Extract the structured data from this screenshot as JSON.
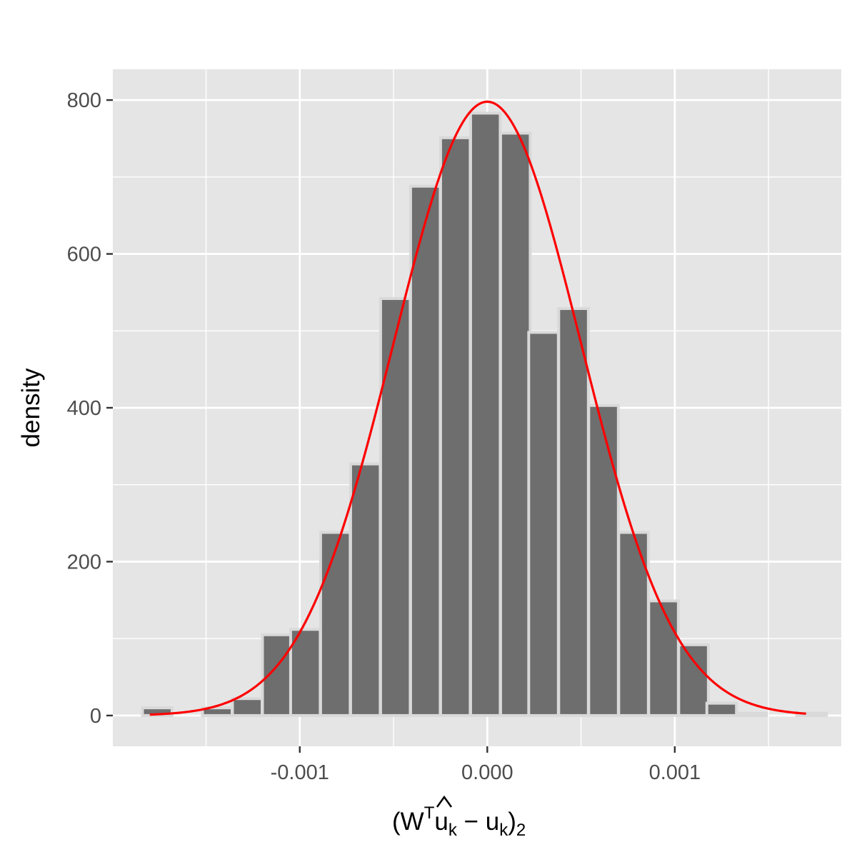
{
  "chart_data": {
    "type": "bar",
    "title": "",
    "ylabel": "density",
    "xlabel_parts": {
      "open": "(W",
      "sup": "T",
      "hat_base": "u",
      "sub_k": "k",
      "minus": " − u",
      "sub_k2": "k",
      "close": ")",
      "sub_2": "2"
    },
    "xlim": [
      -0.001997,
      0.001888
    ],
    "ylim": [
      -40,
      840
    ],
    "x_major_ticks": [
      -0.001,
      0.0,
      0.001
    ],
    "x_tick_labels": [
      "-0.001",
      "0.000",
      "0.001"
    ],
    "x_minor_ticks": [
      -0.0015,
      -0.0005,
      0.0005,
      0.0015
    ],
    "y_major_ticks": [
      0,
      200,
      400,
      600,
      800
    ],
    "y_tick_labels": [
      "0",
      "200",
      "400",
      "600",
      "800"
    ],
    "y_minor_ticks": [
      100,
      300,
      500,
      700
    ],
    "grid": true,
    "bin_width": 0.000158,
    "bin_centers": [
      -0.00176,
      -0.0016,
      -0.00144,
      -0.00128,
      -0.00112,
      -0.00097,
      -0.00081,
      -0.00065,
      -0.00049,
      -0.00033,
      -0.00017,
      -1e-05,
      0.00015,
      0.0003,
      0.00046,
      0.00062,
      0.00078,
      0.00094,
      0.0011,
      0.00125,
      0.00141,
      0.00157,
      0.00173
    ],
    "values": [
      10,
      0,
      10,
      22,
      105,
      112,
      238,
      327,
      542,
      688,
      751,
      783,
      757,
      498,
      529,
      403,
      238,
      149,
      92,
      16,
      3,
      0,
      3
    ],
    "normal_curve": {
      "mean": 0.0,
      "sd": 0.0005,
      "x_start": -0.0018,
      "x_end": 0.0017
    },
    "colors": {
      "panel_bg": "#e5e5e5",
      "grid_major": "#ffffff",
      "bar_fill": "#6e6e6e",
      "bar_outline": "#d9d9d9",
      "curve": "#ff0000",
      "tick_text": "#4d4d4d",
      "axis_title": "#000000"
    }
  }
}
